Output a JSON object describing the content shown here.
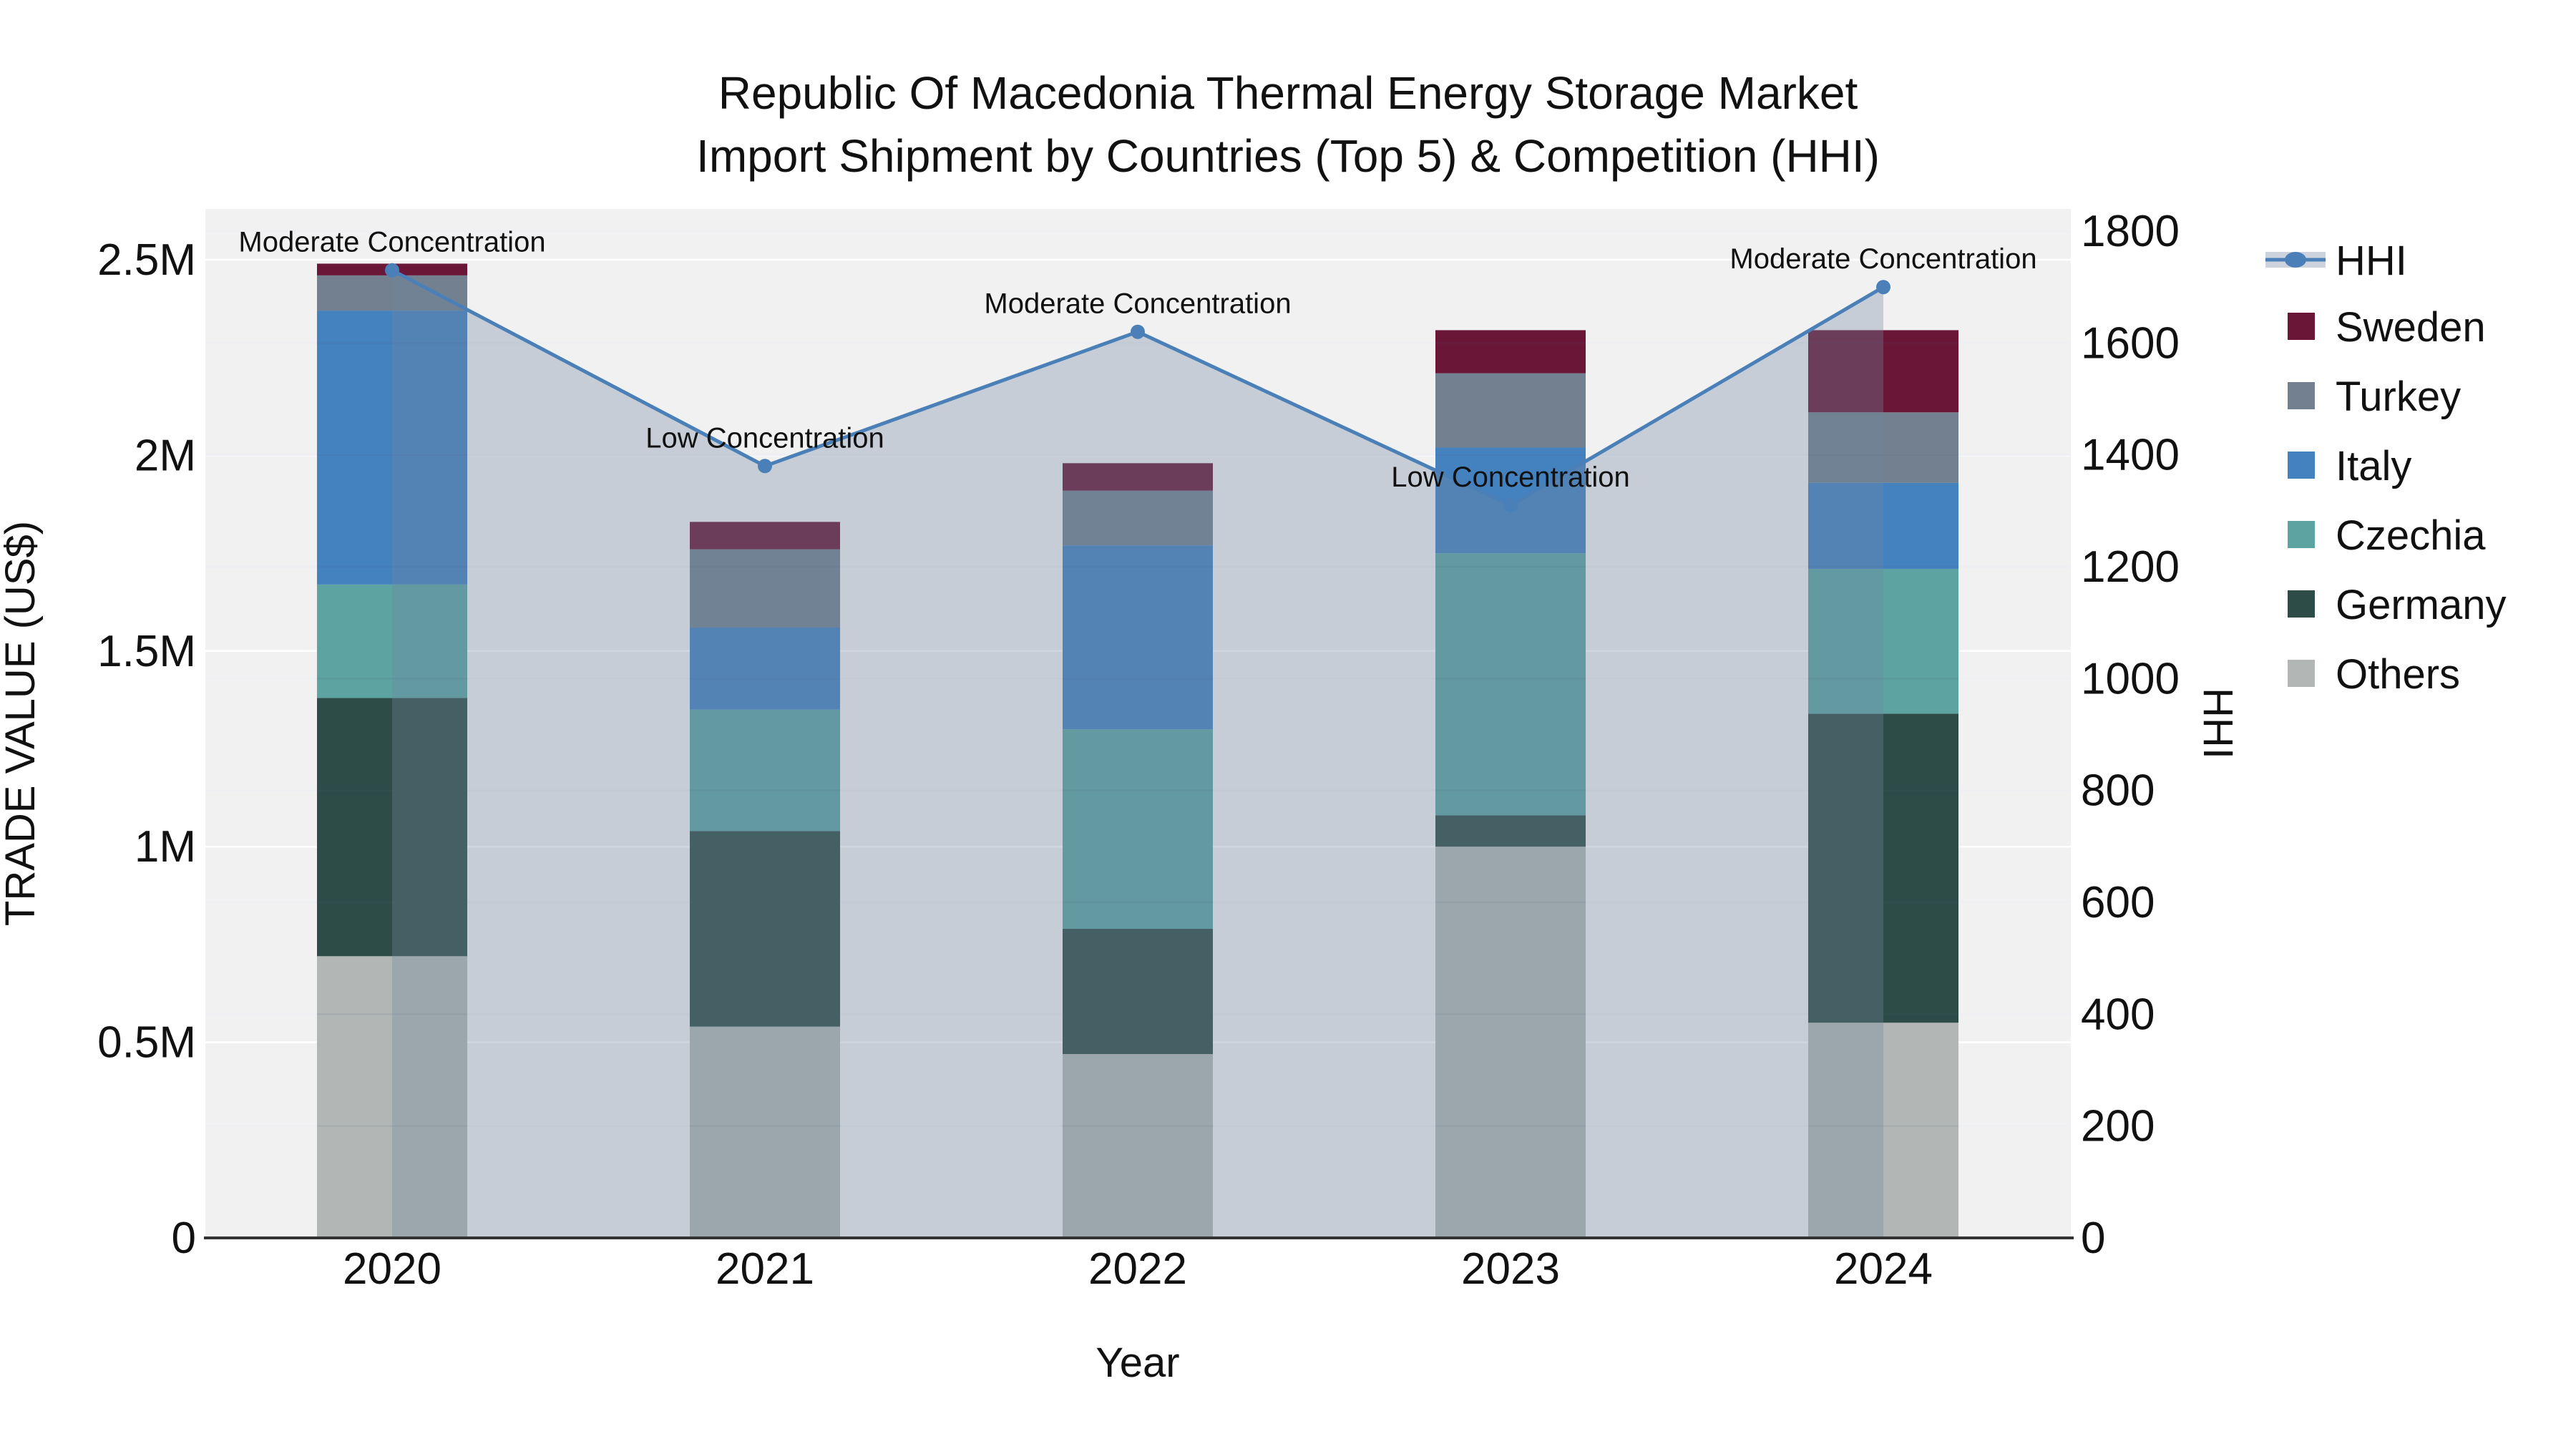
{
  "figure": {
    "title_line1": "Republic Of Macedonia Thermal Energy Storage Market",
    "title_line2": "Import Shipment by Countries (Top 5) & Competition (HHI)"
  },
  "chart_data": {
    "type": "stacked-bar+line",
    "unit_left": "Trade value in millions of US$",
    "unit_right": "HHI index",
    "categories": [
      "2020",
      "2021",
      "2022",
      "2023",
      "2024"
    ],
    "series": [
      {
        "name": "Others",
        "color": "#B2B6B4",
        "values": [
          0.72,
          0.54,
          0.47,
          1.0,
          0.55
        ]
      },
      {
        "name": "Germany",
        "color": "#2D4C47",
        "values": [
          0.66,
          0.5,
          0.32,
          0.08,
          0.79
        ]
      },
      {
        "name": "Czechia",
        "color": "#5CA3A1",
        "values": [
          0.29,
          0.31,
          0.51,
          0.67,
          0.37
        ]
      },
      {
        "name": "Italy",
        "color": "#4381BF",
        "values": [
          0.7,
          0.21,
          0.47,
          0.27,
          0.22
        ]
      },
      {
        "name": "Turkey",
        "color": "#73808F",
        "values": [
          0.09,
          0.2,
          0.14,
          0.19,
          0.18
        ]
      },
      {
        "name": "Sweden",
        "color": "#6A1637",
        "values": [
          0.03,
          0.07,
          0.07,
          0.11,
          0.21
        ]
      }
    ],
    "line_series": {
      "name": "HHI",
      "color": "#4A80B7",
      "fill_color": "rgba(114,134,162,0.34)",
      "values": [
        1730,
        1380,
        1620,
        1310,
        1700
      ]
    },
    "annotations": [
      {
        "x": "2020",
        "label": "Moderate Concentration"
      },
      {
        "x": "2021",
        "label": "Low Concentration"
      },
      {
        "x": "2022",
        "label": "Moderate Concentration"
      },
      {
        "x": "2023",
        "label": "Low Concentration"
      },
      {
        "x": "2024",
        "label": "Moderate Concentration"
      }
    ],
    "x_axis": {
      "title": "Year"
    },
    "y_left": {
      "title": "TRADE VALUE (US$)",
      "ticks": [
        {
          "v": 0.0,
          "label": "0"
        },
        {
          "v": 0.5,
          "label": "0.5M"
        },
        {
          "v": 1.0,
          "label": "1M"
        },
        {
          "v": 1.5,
          "label": "1.5M"
        },
        {
          "v": 2.0,
          "label": "2M"
        },
        {
          "v": 2.5,
          "label": "2.5M"
        }
      ],
      "range_millions": [
        0,
        2.63
      ]
    },
    "y_right": {
      "title": "HHI",
      "tick_step": 200,
      "tick_max": 1800,
      "range": [
        0,
        1840
      ]
    },
    "legend_order": [
      "HHI",
      "Sweden",
      "Turkey",
      "Italy",
      "Czechia",
      "Germany",
      "Others"
    ]
  },
  "colors": {
    "plot_bg": "#F1F1F2",
    "grid": "#FFFFFF",
    "grid_overlay": "rgba(80,100,130,0.10)",
    "axis_line": "#333333",
    "legend_fill_swatch": "#CDD3DC",
    "text": "#111111"
  }
}
